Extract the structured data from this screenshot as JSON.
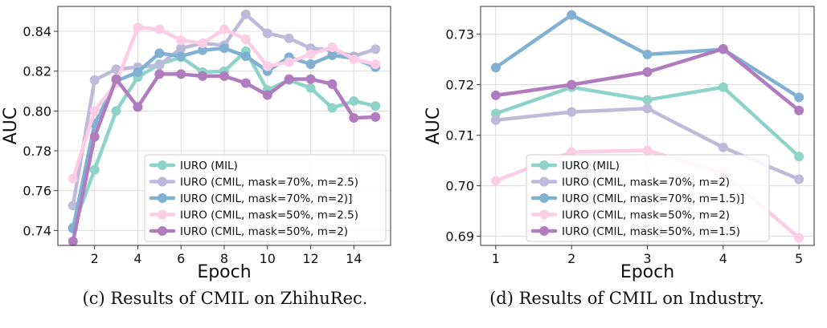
{
  "chart_data": [
    {
      "type": "line",
      "caption": "(c) Results of CMIL on ZhihuRec.",
      "title": "",
      "xlabel": "Epoch",
      "ylabel": "AUC",
      "xlim": [
        0.3,
        15.7
      ],
      "ylim": [
        0.7325,
        0.8525
      ],
      "xticks": [
        2,
        4,
        6,
        8,
        10,
        12,
        14
      ],
      "xtick_labels": [
        "2",
        "4",
        "6",
        "8",
        "10",
        "12",
        "14"
      ],
      "yticks": [
        0.74,
        0.76,
        0.78,
        0.8,
        0.82,
        0.84
      ],
      "ytick_labels": [
        "0.74",
        "0.76",
        "0.78",
        "0.80",
        "0.82",
        "0.84"
      ],
      "grid": true,
      "legend": "bottom-right",
      "x": [
        1,
        2,
        3,
        4,
        5,
        6,
        7,
        8,
        9,
        10,
        11,
        12,
        13,
        14,
        15
      ],
      "series": [
        {
          "name": "IURO (MIL)",
          "color": "#8dd3c7",
          "values": [
            0.7415,
            0.7705,
            0.8,
            0.817,
            0.8235,
            0.827,
            0.8195,
            0.82,
            0.83,
            0.8105,
            0.8155,
            0.8115,
            0.8015,
            0.805,
            0.8025
          ]
        },
        {
          "name": "IURO (CMIL, mask=70%, m=2.5)",
          "color": "#bebada",
          "values": [
            0.7525,
            0.8155,
            0.821,
            0.822,
            0.823,
            0.8315,
            0.834,
            0.833,
            0.8485,
            0.839,
            0.8365,
            0.8315,
            0.8305,
            0.8275,
            0.831
          ]
        },
        {
          "name": "IURO (CMIL, mask=70%, m=2)]",
          "color": "#80b1d3",
          "values": [
            0.741,
            0.7935,
            0.815,
            0.8195,
            0.829,
            0.8275,
            0.8305,
            0.8315,
            0.8275,
            0.82,
            0.827,
            0.8235,
            0.828,
            0.8265,
            0.822
          ]
        },
        {
          "name": "IURO (CMIL, mask=50%, m=2.5)",
          "color": "#fccde5",
          "values": [
            0.766,
            0.8,
            0.814,
            0.842,
            0.841,
            0.8355,
            0.834,
            0.841,
            0.836,
            0.8225,
            0.8245,
            0.8285,
            0.832,
            0.826,
            0.8235
          ]
        },
        {
          "name": "IURO (CMIL, mask=50%, m=2)",
          "color": "#b07cbf",
          "values": [
            0.7345,
            0.787,
            0.816,
            0.802,
            0.8185,
            0.8185,
            0.8175,
            0.8175,
            0.814,
            0.808,
            0.816,
            0.816,
            0.8135,
            0.7965,
            0.797
          ]
        }
      ]
    },
    {
      "type": "line",
      "caption": "(d) Results of CMIL on Industry.",
      "title": "",
      "xlabel": "Epoch",
      "ylabel": "AUC",
      "xlim": [
        0.8,
        5.2
      ],
      "ylim": [
        0.6882,
        0.7355
      ],
      "xticks": [
        1,
        2,
        3,
        4,
        5
      ],
      "xtick_labels": [
        "1",
        "2",
        "3",
        "4",
        "5"
      ],
      "yticks": [
        0.69,
        0.7,
        0.71,
        0.72,
        0.73
      ],
      "ytick_labels": [
        "0.69",
        "0.70",
        "0.71",
        "0.72",
        "0.73"
      ],
      "grid": true,
      "legend": "bottom-left",
      "x": [
        1,
        2,
        3,
        4,
        5
      ],
      "series": [
        {
          "name": "IURO (MIL)",
          "color": "#8dd3c7",
          "values": [
            0.7143,
            0.7195,
            0.717,
            0.7195,
            0.7058
          ]
        },
        {
          "name": "IURO (CMIL, mask=70%, m=2)",
          "color": "#bebada",
          "values": [
            0.713,
            0.7146,
            0.7153,
            0.7076,
            0.7013
          ]
        },
        {
          "name": "IURO (CMIL, mask=70%, m=1.5)]",
          "color": "#80b1d3",
          "values": [
            0.7234,
            0.7338,
            0.726,
            0.727,
            0.7175
          ]
        },
        {
          "name": "IURO (CMIL, mask=50%, m=2)",
          "color": "#fccde5",
          "values": [
            0.701,
            0.7067,
            0.707,
            0.7025,
            0.6897
          ]
        },
        {
          "name": "IURO (CMIL, mask=50%, m=1.5)",
          "color": "#b07cbf",
          "values": [
            0.7179,
            0.72,
            0.7225,
            0.7271,
            0.7149
          ]
        }
      ]
    }
  ]
}
